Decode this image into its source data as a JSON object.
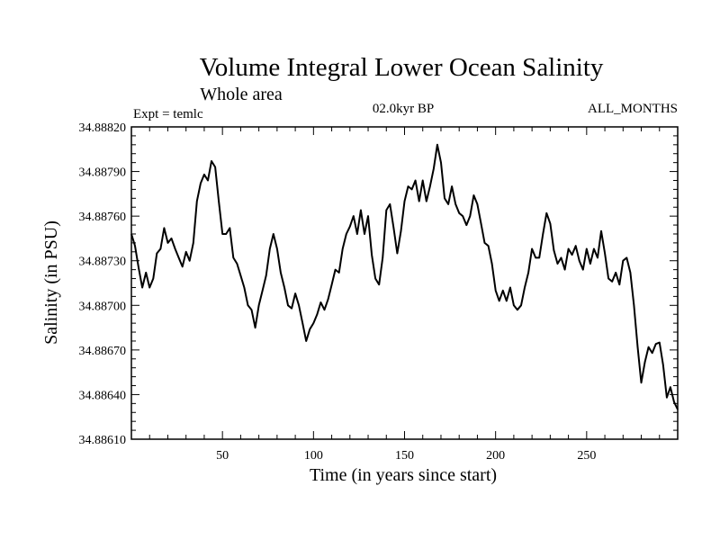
{
  "chart_data": {
    "type": "line",
    "title": "Volume Integral Lower Ocean Salinity",
    "subtitle": "Whole area",
    "experiment": "Expt = temlc",
    "period": "02.0kyr BP",
    "months": "ALL_MONTHS",
    "xlabel": "Time (in years since start)",
    "ylabel": "Salinity (in PSU)",
    "xlim": [
      0,
      300
    ],
    "ylim": [
      34.8861,
      34.8882
    ],
    "xticks": [
      50,
      100,
      150,
      200,
      250
    ],
    "yticks": [
      34.8861,
      34.8864,
      34.8867,
      34.887,
      34.8873,
      34.8876,
      34.8879,
      34.8882
    ],
    "ytick_labels": [
      "34.88610",
      "34.88640",
      "34.88670",
      "34.88700",
      "34.88730",
      "34.88760",
      "34.88790",
      "34.88820"
    ],
    "series": [
      {
        "name": "Salinity",
        "x": [
          0,
          2,
          4,
          6,
          8,
          10,
          12,
          14,
          16,
          18,
          20,
          22,
          24,
          26,
          28,
          30,
          32,
          34,
          36,
          38,
          40,
          42,
          44,
          46,
          48,
          50,
          52,
          54,
          56,
          58,
          60,
          62,
          64,
          66,
          68,
          70,
          72,
          74,
          76,
          78,
          80,
          82,
          84,
          86,
          88,
          90,
          92,
          94,
          96,
          98,
          100,
          102,
          104,
          106,
          108,
          110,
          112,
          114,
          116,
          118,
          120,
          122,
          124,
          126,
          128,
          130,
          132,
          134,
          136,
          138,
          140,
          142,
          144,
          146,
          148,
          150,
          152,
          154,
          156,
          158,
          160,
          162,
          164,
          166,
          168,
          170,
          172,
          174,
          176,
          178,
          180,
          182,
          184,
          186,
          188,
          190,
          192,
          194,
          196,
          198,
          200,
          202,
          204,
          206,
          208,
          210,
          212,
          214,
          216,
          218,
          220,
          222,
          224,
          226,
          228,
          230,
          232,
          234,
          236,
          238,
          240,
          242,
          244,
          246,
          248,
          250,
          252,
          254,
          256,
          258,
          260,
          262,
          264,
          266,
          268,
          270,
          272,
          274,
          276,
          278,
          280,
          282,
          284,
          286,
          288,
          290,
          292,
          294,
          296,
          298,
          300
        ],
        "y": [
          34.88748,
          34.8874,
          34.88725,
          34.88712,
          34.88722,
          34.88712,
          34.88718,
          34.88735,
          34.88738,
          34.88752,
          34.88742,
          34.88745,
          34.88738,
          34.88732,
          34.88726,
          34.88736,
          34.8873,
          34.88742,
          34.8877,
          34.88782,
          34.88788,
          34.88784,
          34.88797,
          34.88793,
          34.8877,
          34.88748,
          34.88748,
          34.88752,
          34.88732,
          34.88728,
          34.8872,
          34.88712,
          34.887,
          34.88697,
          34.88685,
          34.887,
          34.8871,
          34.8872,
          34.88738,
          34.88748,
          34.88738,
          34.88722,
          34.88712,
          34.887,
          34.88698,
          34.88708,
          34.887,
          34.88688,
          34.88676,
          34.88684,
          34.88688,
          34.88694,
          34.88702,
          34.88697,
          34.88704,
          34.88714,
          34.88724,
          34.88722,
          34.88738,
          34.88748,
          34.88753,
          34.8876,
          34.88748,
          34.88764,
          34.88748,
          34.8876,
          34.88734,
          34.88718,
          34.88714,
          34.88732,
          34.88764,
          34.88768,
          34.88752,
          34.88735,
          34.8875,
          34.8877,
          34.8878,
          34.88778,
          34.88784,
          34.8877,
          34.88784,
          34.8877,
          34.8878,
          34.88792,
          34.88808,
          34.88796,
          34.88772,
          34.88768,
          34.8878,
          34.88768,
          34.88762,
          34.8876,
          34.88754,
          34.8876,
          34.88774,
          34.88768,
          34.88755,
          34.88742,
          34.8874,
          34.88728,
          34.8871,
          34.88703,
          34.8871,
          34.88703,
          34.88712,
          34.887,
          34.88697,
          34.887,
          34.88712,
          34.88722,
          34.88738,
          34.88732,
          34.88732,
          34.88748,
          34.88762,
          34.88755,
          34.88737,
          34.88728,
          34.88732,
          34.88724,
          34.88738,
          34.88734,
          34.8874,
          34.8873,
          34.88724,
          34.88738,
          34.88728,
          34.88738,
          34.88732,
          34.8875,
          34.88735,
          34.88718,
          34.88716,
          34.88722,
          34.88714,
          34.8873,
          34.88732,
          34.88722,
          34.887,
          34.88672,
          34.88648,
          34.88662,
          34.88672,
          34.88668,
          34.88674,
          34.88675,
          34.8866,
          34.88638,
          34.88645,
          34.88635,
          34.8863
        ]
      }
    ]
  }
}
